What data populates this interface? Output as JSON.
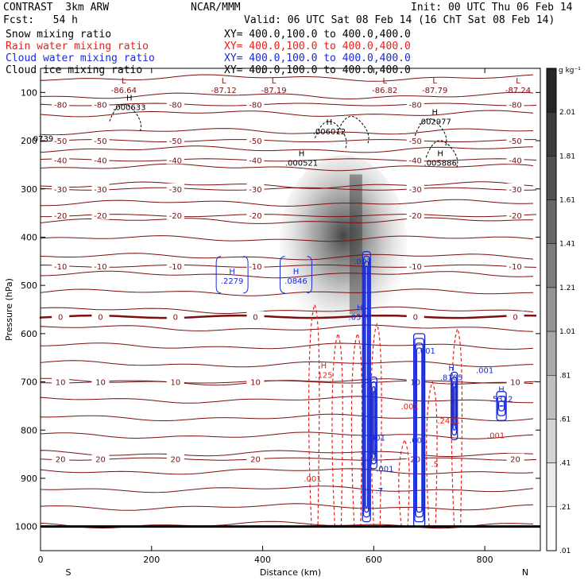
{
  "header": {
    "model": "CONTRAST  3km ARW",
    "org": "NCAR/MMM",
    "init": "Init: 00 UTC Thu 06 Feb 14",
    "fcst": "Fcst:   54 h",
    "valid": "Valid: 06 UTC Sat 08 Feb 14 (16 ChT Sat 08 Feb 14)",
    "fields": [
      {
        "name": "Snow mixing ratio",
        "xy": "XY= 400.0,100.0 to 400.0,400.0",
        "color": "#000000"
      },
      {
        "name": "Rain water mixing ratio",
        "xy": "XY= 400.0,100.0 to 400.0,400.0",
        "color": "#e8201c"
      },
      {
        "name": "Cloud water mixing ratio",
        "xy": "XY= 400.0,100.0 to 400.0,400.0",
        "color": "#1a2bd6"
      },
      {
        "name": "Cloud ice mixing ratio",
        "xy": "XY= 400.0,100.0 to 400.0,400.0",
        "color": "#000000"
      }
    ]
  },
  "chart_data": {
    "type": "heatmap",
    "xlabel": "Distance (km)",
    "ylabel": "Pressure (hPa)",
    "xlim": [
      0,
      900
    ],
    "ylim": [
      1050,
      50
    ],
    "x_ticks": [
      0,
      200,
      400,
      600,
      800
    ],
    "y_ticks": [
      100,
      200,
      300,
      400,
      500,
      600,
      700,
      800,
      900,
      1000
    ],
    "x_end_labels": {
      "left": "S",
      "right": "N"
    },
    "colorbar": {
      "unit": "g kg⁻¹",
      "labels": [
        "2.01",
        "1.81",
        "1.61",
        "1.41",
        "1.21",
        "1.01",
        ".81",
        ".61",
        ".41",
        ".21",
        ".01"
      ]
    },
    "temperature_contours": [
      {
        "label": "-80",
        "p": 125
      },
      {
        "label": "-50",
        "p": 200
      },
      {
        "label": "-40",
        "p": 240
      },
      {
        "label": "-30",
        "p": 300
      },
      {
        "label": "-20",
        "p": 355
      },
      {
        "label": "-10",
        "p": 460
      },
      {
        "label": "0",
        "p": 565
      },
      {
        "label": "10",
        "p": 700
      },
      {
        "label": "20",
        "p": 860
      }
    ],
    "pressure_lows": [
      {
        "label": "L",
        "value": "-86.64",
        "x": 150,
        "p": 85
      },
      {
        "label": "L",
        "value": "-87.12",
        "x": 330,
        "p": 85
      },
      {
        "label": "L",
        "value": "-87.19",
        "x": 420,
        "p": 85
      },
      {
        "label": "L",
        "value": "-86.82",
        "x": 620,
        "p": 85
      },
      {
        "label": "L",
        "value": "-87.79",
        "x": 710,
        "p": 85
      },
      {
        "label": "L",
        "value": "-87.24",
        "x": 860,
        "p": 85
      }
    ],
    "ice_highs": [
      {
        "label": "H",
        "value": ".000633",
        "x": 160,
        "p": 120
      },
      {
        "label": "H",
        "value": ".006012",
        "x": 520,
        "p": 170
      },
      {
        "label": "H",
        "value": ".002977",
        "x": 710,
        "p": 150
      },
      {
        "label": "H",
        "value": ".000521",
        "x": 470,
        "p": 235
      },
      {
        "label": "H",
        "value": ".005886",
        "x": 720,
        "p": 235
      },
      {
        "label": "",
        "value": "0739",
        "x": 5,
        "p": 185
      }
    ],
    "cloud_water_highs": [
      {
        "label": "H",
        "value": ".2279",
        "x": 345,
        "p": 480
      },
      {
        "label": "H",
        "value": ".0846",
        "x": 460,
        "p": 480
      },
      {
        "label": "",
        "value": ".001",
        "x": 580,
        "p": 440
      },
      {
        "label": "H",
        "value": ".0570",
        "x": 575,
        "p": 555
      },
      {
        "label": "",
        "value": ".001",
        "x": 695,
        "p": 625
      },
      {
        "label": "H",
        "value": ".8185",
        "x": 740,
        "p": 680
      },
      {
        "label": "",
        "value": ".001",
        "x": 800,
        "p": 665
      },
      {
        "label": "H",
        "value": ".5322",
        "x": 830,
        "p": 725
      },
      {
        "label": "",
        "value": ".001",
        "x": 605,
        "p": 805
      },
      {
        "label": "",
        "value": ".001",
        "x": 680,
        "p": 810
      },
      {
        "label": "",
        "value": ".7",
        "x": 610,
        "p": 915
      },
      {
        "label": "",
        "value": ".001",
        "x": 620,
        "p": 870
      }
    ],
    "rain_highs": [
      {
        "label": "H",
        "value": ".125",
        "x": 510,
        "p": 675
      },
      {
        "label": "",
        "value": ".001",
        "x": 665,
        "p": 740
      },
      {
        "label": "",
        "value": ".001",
        "x": 490,
        "p": 890
      },
      {
        "label": "",
        "value": ".001",
        "x": 820,
        "p": 800
      },
      {
        "label": "",
        "value": ".2401",
        "x": 735,
        "p": 770
      },
      {
        "label": "",
        "value": ".5",
        "x": 710,
        "p": 860
      }
    ],
    "snow_max_region": {
      "x": [
        430,
        660
      ],
      "p": [
        230,
        600
      ]
    }
  }
}
